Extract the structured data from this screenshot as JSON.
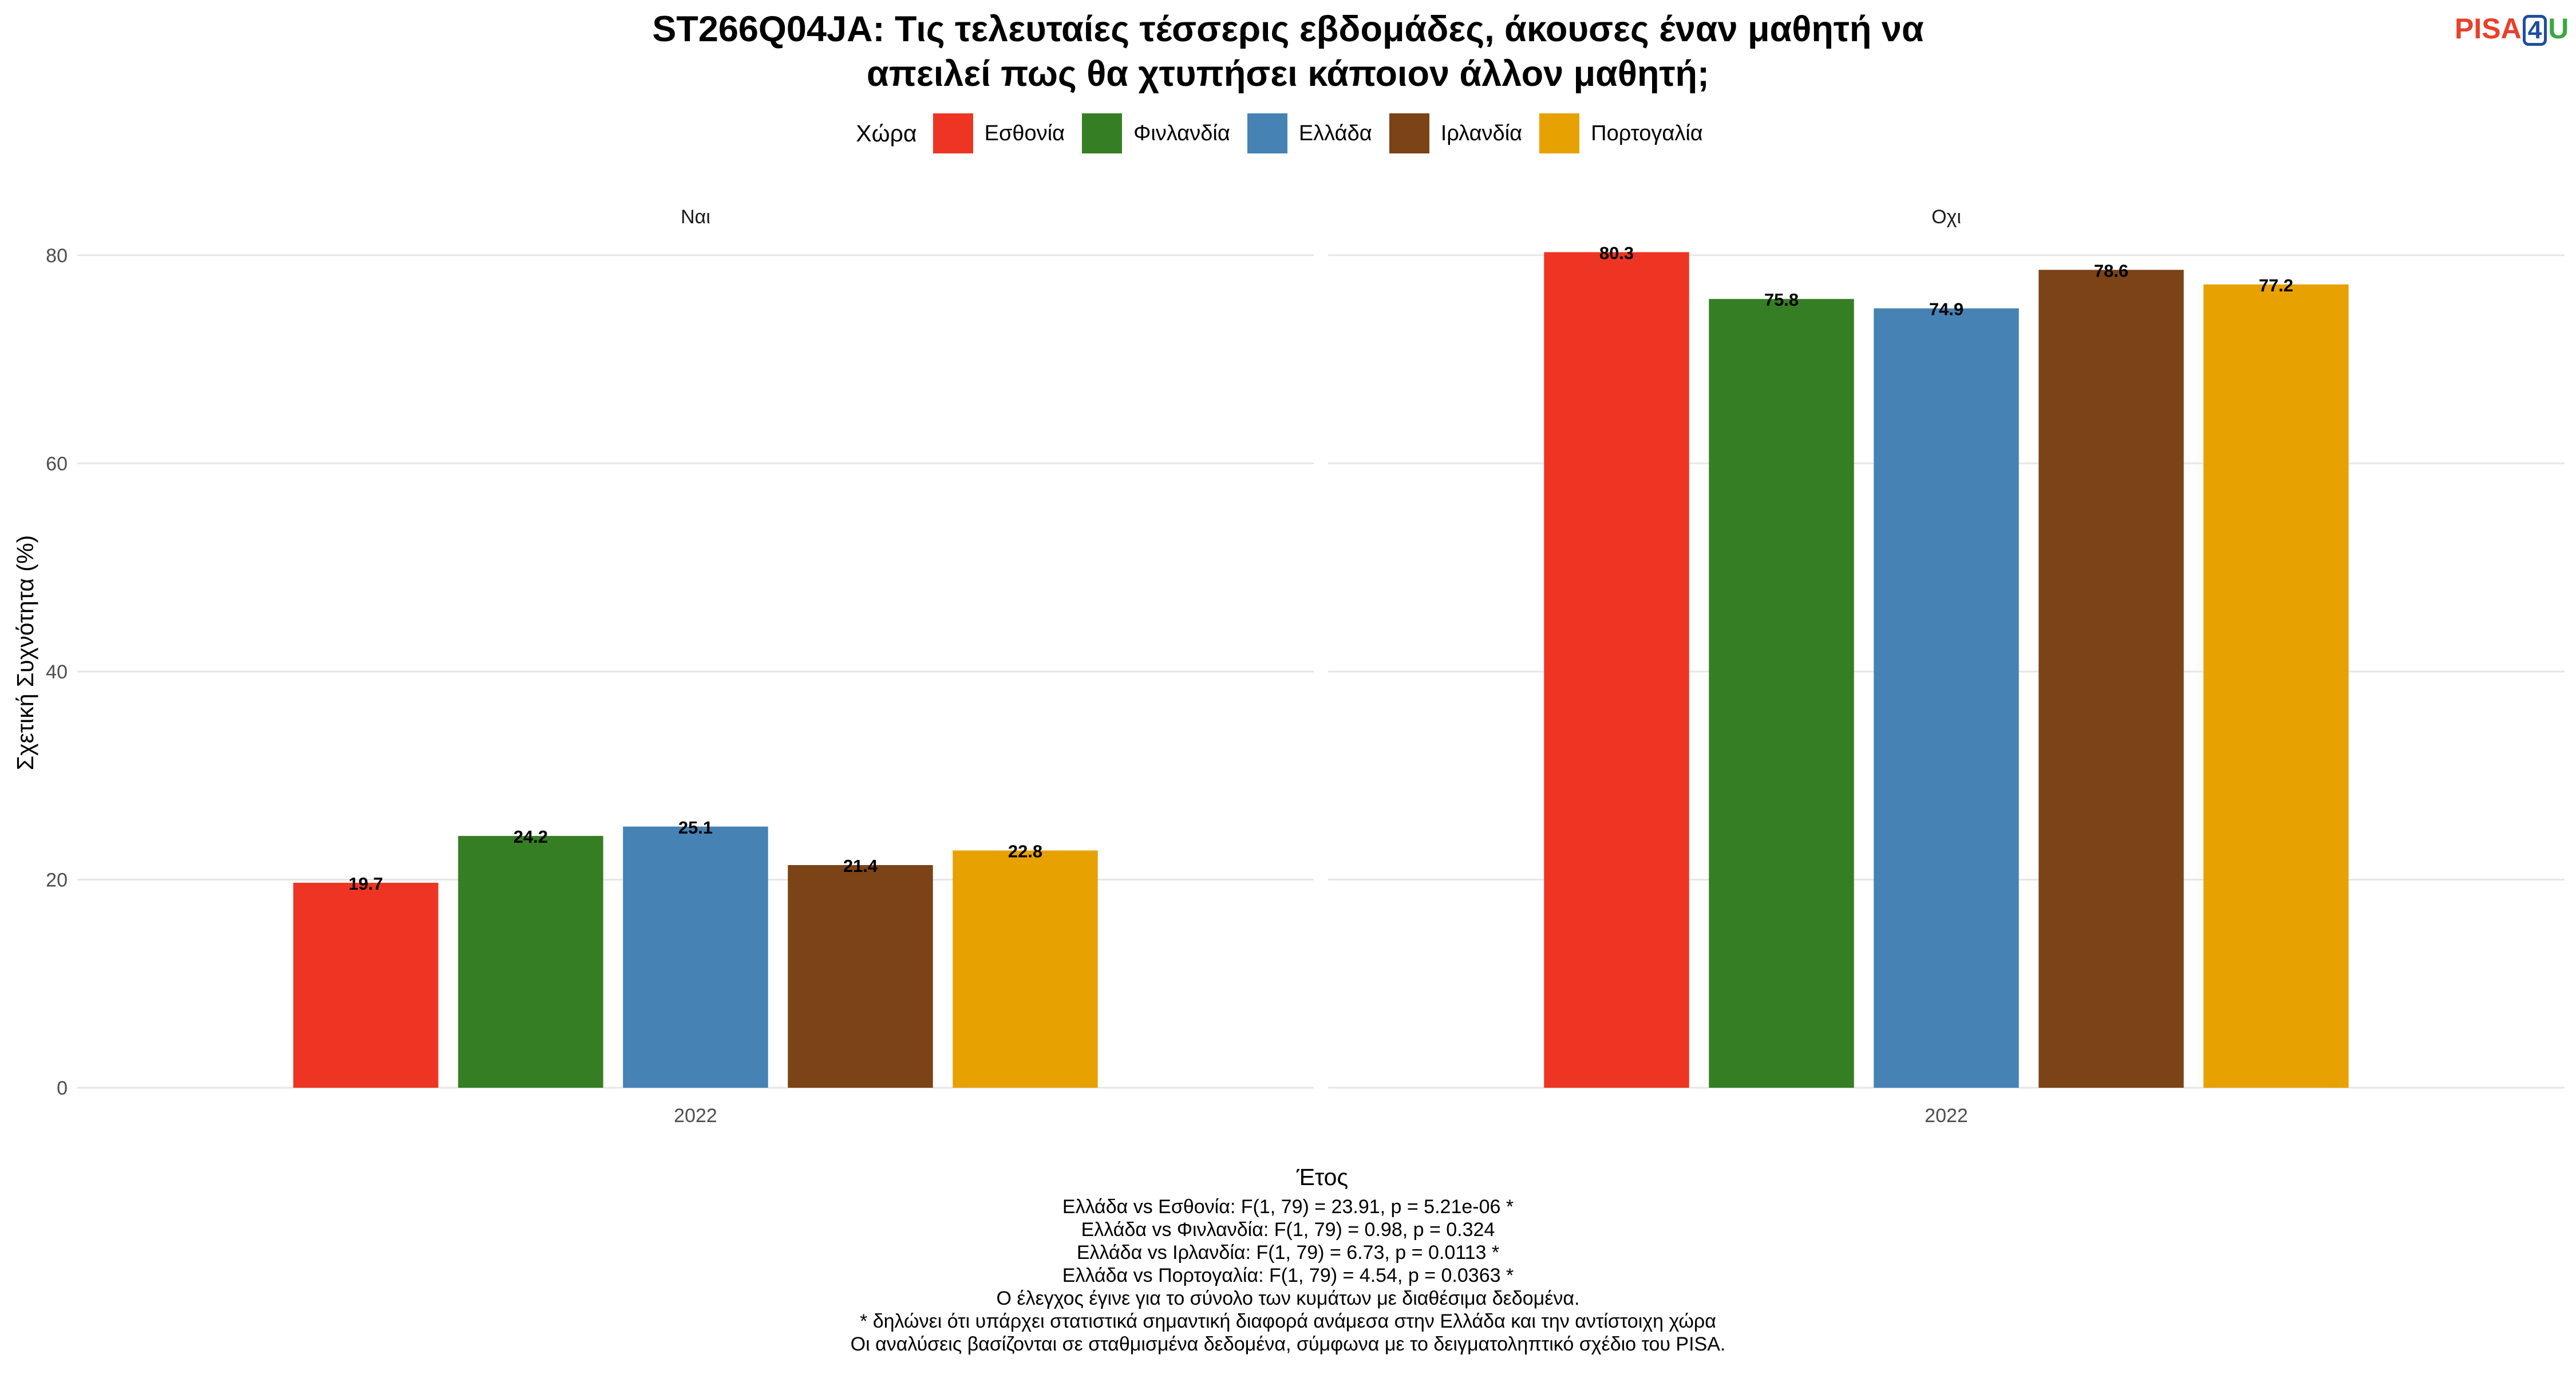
{
  "title_lines": [
    "ST266Q04JA: Τις τελευταίες τέσσερις εβδομάδες, άκουσες έναν μαθητή να",
    "απειλεί πως θα χτυπήσει κάποιον άλλον μαθητή;"
  ],
  "logo": {
    "part1": "PISA",
    "part2": "4",
    "part3": "U"
  },
  "chart_data": {
    "type": "bar",
    "title": "ST266Q04JA: Τις τελευταίες τέσσερις εβδομάδες, άκουσες έναν μαθητή να απειλεί πως θα χτυπήσει κάποιον άλλον μαθητή;",
    "xlabel": "Έτος",
    "ylabel": "Σχετική Συχνότητα (%)",
    "ylim": [
      0,
      85
    ],
    "yticks": [
      0,
      20,
      40,
      60,
      80
    ],
    "grid": true,
    "legend_title": "Χώρα",
    "legend_position": "top",
    "legend": [
      {
        "name": "Εσθονία",
        "color": "#ee3524"
      },
      {
        "name": "Φινλανδία",
        "color": "#367e23"
      },
      {
        "name": "Ελλάδα",
        "color": "#4682b4"
      },
      {
        "name": "Ιρλανδία",
        "color": "#7b4316"
      },
      {
        "name": "Πορτογαλία",
        "color": "#e7a100"
      }
    ],
    "facets": [
      {
        "label": "Ναι",
        "x": "2022",
        "values": [
          19.7,
          24.2,
          25.1,
          21.4,
          22.8
        ]
      },
      {
        "label": "Οχι",
        "x": "2022",
        "values": [
          80.3,
          75.8,
          74.9,
          78.6,
          77.2
        ]
      }
    ]
  },
  "notes": [
    "Ελλάδα vs Εσθονία: F(1, 79) = 23.91, p = 5.21e-06 *",
    "Ελλάδα vs Φινλανδία: F(1, 79) = 0.98, p = 0.324",
    "Ελλάδα vs Ιρλανδία: F(1, 79) = 6.73, p = 0.0113 *",
    "Ελλάδα vs Πορτογαλία: F(1, 79) = 4.54, p = 0.0363 *",
    "Ο έλεγχος έγινε για το σύνολο των κυμάτων με διαθέσιμα δεδομένα.",
    "* δηλώνει ότι υπάρχει στατιστικά σημαντική διαφορά ανάμεσα στην Ελλάδα και την αντίστοιχη χώρα",
    "Οι αναλύσεις βασίζονται σε σταθμισμένα δεδομένα, σύμφωνα με το δειγματοληπτικό σχέδιο του PISA."
  ]
}
